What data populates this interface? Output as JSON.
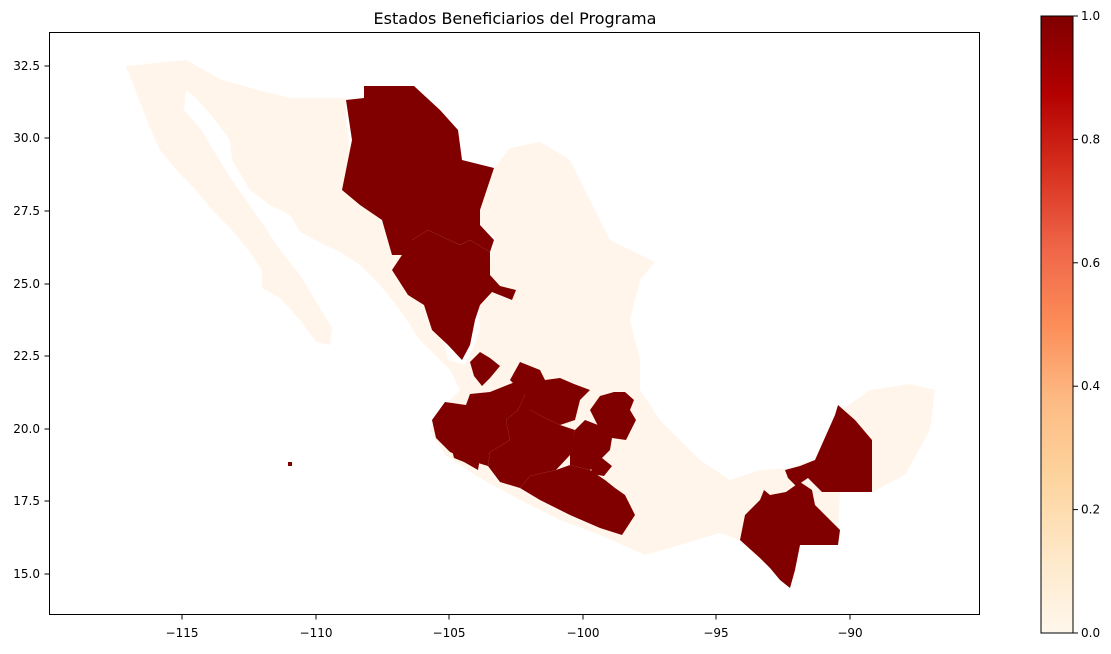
{
  "title": "Estados Beneficiarios del Programa",
  "colors": {
    "beneficiary": "#800000",
    "non_beneficiary": "#fff5eb",
    "axis": "#000000",
    "background": "#ffffff"
  },
  "colorscale": {
    "name": "OrRd",
    "ticks": [
      "0.0",
      "0.2",
      "0.4",
      "0.6",
      "0.8",
      "1.0"
    ],
    "stops": [
      "#fff7ec",
      "#fee8c8",
      "#fdd49e",
      "#fdbb84",
      "#fc8d59",
      "#ef6548",
      "#d7301f",
      "#b30000",
      "#7f0000"
    ]
  },
  "axes": {
    "x_ticks": [
      "−115",
      "−110",
      "−105",
      "−100",
      "−95",
      "−90"
    ],
    "y_ticks": [
      "15.0",
      "17.5",
      "20.0",
      "22.5",
      "25.0",
      "27.5",
      "30.0",
      "32.5"
    ]
  },
  "map": {
    "value_meaning": "1 = beneficiary state, 0 = not beneficiary",
    "regions": [
      {
        "name": "Chihuahua",
        "value": 1
      },
      {
        "name": "Durango",
        "value": 1
      },
      {
        "name": "Aguascalientes",
        "value": 1
      },
      {
        "name": "Jalisco",
        "value": 1
      },
      {
        "name": "Guanajuato",
        "value": 1
      },
      {
        "name": "Michoacán",
        "value": 1
      },
      {
        "name": "Colima",
        "value": 1
      },
      {
        "name": "Guerrero",
        "value": 1
      },
      {
        "name": "Morelos",
        "value": 1
      },
      {
        "name": "Ciudad de México",
        "value": 1
      },
      {
        "name": "México",
        "value": 1
      },
      {
        "name": "Hidalgo",
        "value": 1
      },
      {
        "name": "Chiapas",
        "value": 1
      },
      {
        "name": "Campeche",
        "value": 1
      },
      {
        "name": "Baja California",
        "value": 0
      },
      {
        "name": "Baja California Sur",
        "value": 0
      },
      {
        "name": "Sonora",
        "value": 0
      },
      {
        "name": "Sinaloa",
        "value": 0
      },
      {
        "name": "Coahuila",
        "value": 0
      },
      {
        "name": "Nuevo León",
        "value": 0
      },
      {
        "name": "Tamaulipas",
        "value": 0
      },
      {
        "name": "Zacatecas",
        "value": 0
      },
      {
        "name": "San Luis Potosí",
        "value": 0
      },
      {
        "name": "Nayarit",
        "value": 0
      },
      {
        "name": "Querétaro",
        "value": 0
      },
      {
        "name": "Veracruz",
        "value": 0
      },
      {
        "name": "Puebla",
        "value": 0
      },
      {
        "name": "Tlaxcala",
        "value": 0
      },
      {
        "name": "Oaxaca",
        "value": 0
      },
      {
        "name": "Tabasco",
        "value": 0
      },
      {
        "name": "Yucatán",
        "value": 0
      },
      {
        "name": "Quintana Roo",
        "value": 0
      }
    ]
  }
}
